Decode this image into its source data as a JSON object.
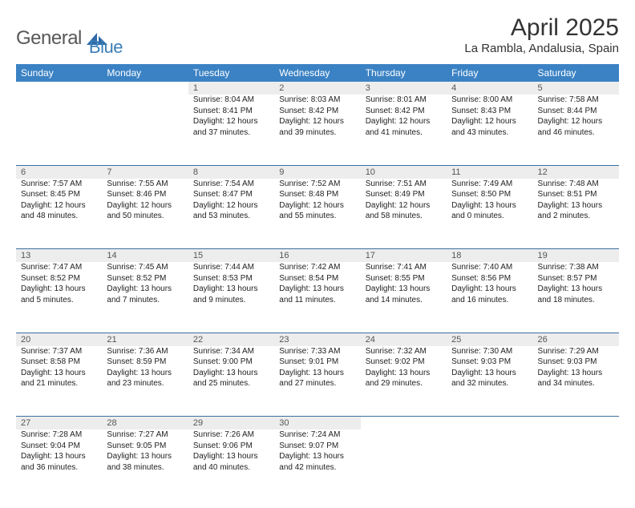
{
  "brand": {
    "general": "General",
    "blue": "Blue"
  },
  "title": "April 2025",
  "location": "La Rambla, Andalusia, Spain",
  "colors": {
    "header_bg": "#3b82c4",
    "header_text": "#ffffff",
    "daynum_bg": "#ededed",
    "daynum_text": "#555555",
    "cell_border": "#3b6fa0",
    "logo_gray": "#585858",
    "logo_blue": "#3b7fb8",
    "body_text": "#222222",
    "page_bg": "#ffffff"
  },
  "fonts": {
    "family": "Arial",
    "title_pt": 30,
    "location_pt": 15,
    "header_pt": 12,
    "daynum_pt": 11,
    "body_pt": 10
  },
  "columns": [
    "Sunday",
    "Monday",
    "Tuesday",
    "Wednesday",
    "Thursday",
    "Friday",
    "Saturday"
  ],
  "weeks": [
    {
      "nums": [
        "",
        "",
        "1",
        "2",
        "3",
        "4",
        "5"
      ],
      "cells": [
        null,
        null,
        {
          "sr": "Sunrise: 8:04 AM",
          "ss": "Sunset: 8:41 PM",
          "d1": "Daylight: 12 hours",
          "d2": "and 37 minutes."
        },
        {
          "sr": "Sunrise: 8:03 AM",
          "ss": "Sunset: 8:42 PM",
          "d1": "Daylight: 12 hours",
          "d2": "and 39 minutes."
        },
        {
          "sr": "Sunrise: 8:01 AM",
          "ss": "Sunset: 8:42 PM",
          "d1": "Daylight: 12 hours",
          "d2": "and 41 minutes."
        },
        {
          "sr": "Sunrise: 8:00 AM",
          "ss": "Sunset: 8:43 PM",
          "d1": "Daylight: 12 hours",
          "d2": "and 43 minutes."
        },
        {
          "sr": "Sunrise: 7:58 AM",
          "ss": "Sunset: 8:44 PM",
          "d1": "Daylight: 12 hours",
          "d2": "and 46 minutes."
        }
      ]
    },
    {
      "nums": [
        "6",
        "7",
        "8",
        "9",
        "10",
        "11",
        "12"
      ],
      "cells": [
        {
          "sr": "Sunrise: 7:57 AM",
          "ss": "Sunset: 8:45 PM",
          "d1": "Daylight: 12 hours",
          "d2": "and 48 minutes."
        },
        {
          "sr": "Sunrise: 7:55 AM",
          "ss": "Sunset: 8:46 PM",
          "d1": "Daylight: 12 hours",
          "d2": "and 50 minutes."
        },
        {
          "sr": "Sunrise: 7:54 AM",
          "ss": "Sunset: 8:47 PM",
          "d1": "Daylight: 12 hours",
          "d2": "and 53 minutes."
        },
        {
          "sr": "Sunrise: 7:52 AM",
          "ss": "Sunset: 8:48 PM",
          "d1": "Daylight: 12 hours",
          "d2": "and 55 minutes."
        },
        {
          "sr": "Sunrise: 7:51 AM",
          "ss": "Sunset: 8:49 PM",
          "d1": "Daylight: 12 hours",
          "d2": "and 58 minutes."
        },
        {
          "sr": "Sunrise: 7:49 AM",
          "ss": "Sunset: 8:50 PM",
          "d1": "Daylight: 13 hours",
          "d2": "and 0 minutes."
        },
        {
          "sr": "Sunrise: 7:48 AM",
          "ss": "Sunset: 8:51 PM",
          "d1": "Daylight: 13 hours",
          "d2": "and 2 minutes."
        }
      ]
    },
    {
      "nums": [
        "13",
        "14",
        "15",
        "16",
        "17",
        "18",
        "19"
      ],
      "cells": [
        {
          "sr": "Sunrise: 7:47 AM",
          "ss": "Sunset: 8:52 PM",
          "d1": "Daylight: 13 hours",
          "d2": "and 5 minutes."
        },
        {
          "sr": "Sunrise: 7:45 AM",
          "ss": "Sunset: 8:52 PM",
          "d1": "Daylight: 13 hours",
          "d2": "and 7 minutes."
        },
        {
          "sr": "Sunrise: 7:44 AM",
          "ss": "Sunset: 8:53 PM",
          "d1": "Daylight: 13 hours",
          "d2": "and 9 minutes."
        },
        {
          "sr": "Sunrise: 7:42 AM",
          "ss": "Sunset: 8:54 PM",
          "d1": "Daylight: 13 hours",
          "d2": "and 11 minutes."
        },
        {
          "sr": "Sunrise: 7:41 AM",
          "ss": "Sunset: 8:55 PM",
          "d1": "Daylight: 13 hours",
          "d2": "and 14 minutes."
        },
        {
          "sr": "Sunrise: 7:40 AM",
          "ss": "Sunset: 8:56 PM",
          "d1": "Daylight: 13 hours",
          "d2": "and 16 minutes."
        },
        {
          "sr": "Sunrise: 7:38 AM",
          "ss": "Sunset: 8:57 PM",
          "d1": "Daylight: 13 hours",
          "d2": "and 18 minutes."
        }
      ]
    },
    {
      "nums": [
        "20",
        "21",
        "22",
        "23",
        "24",
        "25",
        "26"
      ],
      "cells": [
        {
          "sr": "Sunrise: 7:37 AM",
          "ss": "Sunset: 8:58 PM",
          "d1": "Daylight: 13 hours",
          "d2": "and 21 minutes."
        },
        {
          "sr": "Sunrise: 7:36 AM",
          "ss": "Sunset: 8:59 PM",
          "d1": "Daylight: 13 hours",
          "d2": "and 23 minutes."
        },
        {
          "sr": "Sunrise: 7:34 AM",
          "ss": "Sunset: 9:00 PM",
          "d1": "Daylight: 13 hours",
          "d2": "and 25 minutes."
        },
        {
          "sr": "Sunrise: 7:33 AM",
          "ss": "Sunset: 9:01 PM",
          "d1": "Daylight: 13 hours",
          "d2": "and 27 minutes."
        },
        {
          "sr": "Sunrise: 7:32 AM",
          "ss": "Sunset: 9:02 PM",
          "d1": "Daylight: 13 hours",
          "d2": "and 29 minutes."
        },
        {
          "sr": "Sunrise: 7:30 AM",
          "ss": "Sunset: 9:03 PM",
          "d1": "Daylight: 13 hours",
          "d2": "and 32 minutes."
        },
        {
          "sr": "Sunrise: 7:29 AM",
          "ss": "Sunset: 9:03 PM",
          "d1": "Daylight: 13 hours",
          "d2": "and 34 minutes."
        }
      ]
    },
    {
      "nums": [
        "27",
        "28",
        "29",
        "30",
        "",
        "",
        ""
      ],
      "cells": [
        {
          "sr": "Sunrise: 7:28 AM",
          "ss": "Sunset: 9:04 PM",
          "d1": "Daylight: 13 hours",
          "d2": "and 36 minutes."
        },
        {
          "sr": "Sunrise: 7:27 AM",
          "ss": "Sunset: 9:05 PM",
          "d1": "Daylight: 13 hours",
          "d2": "and 38 minutes."
        },
        {
          "sr": "Sunrise: 7:26 AM",
          "ss": "Sunset: 9:06 PM",
          "d1": "Daylight: 13 hours",
          "d2": "and 40 minutes."
        },
        {
          "sr": "Sunrise: 7:24 AM",
          "ss": "Sunset: 9:07 PM",
          "d1": "Daylight: 13 hours",
          "d2": "and 42 minutes."
        },
        null,
        null,
        null
      ]
    }
  ]
}
